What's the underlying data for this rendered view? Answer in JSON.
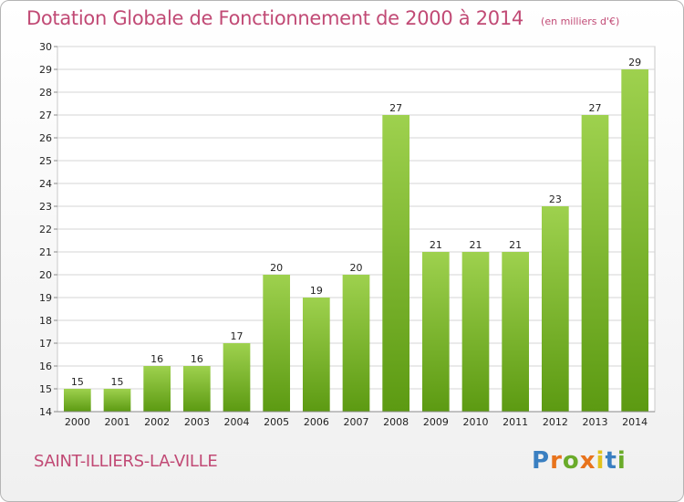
{
  "header": {
    "title": "Dotation Globale de Fonctionnement de 2000 à 2014",
    "subtitle": "(en milliers d'€)"
  },
  "footer": {
    "commune": "SAINT-ILLIERS-LA-VILLE",
    "logo_text": "Proxiti",
    "logo_letters": [
      {
        "ch": "P",
        "color": "#3a7fc1"
      },
      {
        "ch": "r",
        "color": "#e8731c"
      },
      {
        "ch": "o",
        "color": "#6aab2a"
      },
      {
        "ch": "x",
        "color": "#e8731c"
      },
      {
        "ch": "i",
        "color": "#e2c21b"
      },
      {
        "ch": "t",
        "color": "#3a7fc1"
      },
      {
        "ch": "i",
        "color": "#6aab2a"
      }
    ]
  },
  "colors": {
    "title": "#c14a75",
    "bar_light": "#9ed14e",
    "bar_dark": "#5c9a12",
    "grid": "#d4d4d4",
    "axis_text": "#222222"
  },
  "chart_data": {
    "type": "bar",
    "title": "Dotation Globale de Fonctionnement de 2000 à 2014",
    "subtitle": "(en milliers d'€)",
    "xlabel": "",
    "ylabel": "",
    "categories": [
      "2000",
      "2001",
      "2002",
      "2003",
      "2004",
      "2005",
      "2006",
      "2007",
      "2008",
      "2009",
      "2010",
      "2011",
      "2012",
      "2013",
      "2014"
    ],
    "values": [
      15,
      15,
      16,
      16,
      17,
      20,
      19,
      20,
      27,
      21,
      21,
      21,
      23,
      27,
      29
    ],
    "ylim": [
      14,
      30
    ],
    "yticks": [
      14,
      15,
      16,
      17,
      18,
      19,
      20,
      21,
      22,
      23,
      24,
      25,
      26,
      27,
      28,
      29,
      30
    ],
    "grid": true,
    "data_labels": true,
    "legend": "none"
  }
}
